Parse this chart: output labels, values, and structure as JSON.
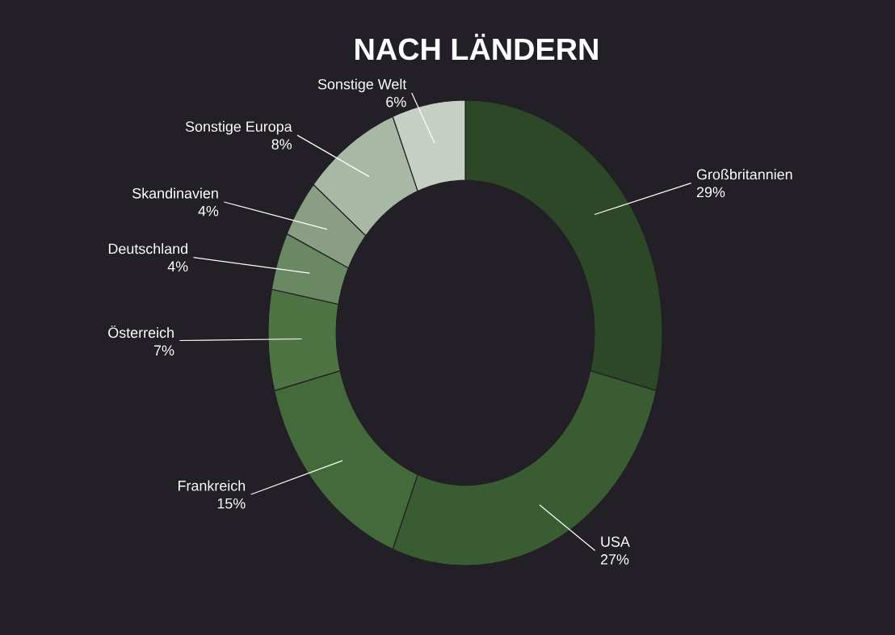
{
  "chart_data": {
    "type": "donut",
    "title": "NACH LÄNDERN",
    "categories": [
      "Großbritannien",
      "USA",
      "Frankreich",
      "Österreich",
      "Deutschland",
      "Skandinavien",
      "Sonstige Europa",
      "Sonstige Welt"
    ],
    "values": [
      29,
      27,
      15,
      7,
      4,
      4,
      8,
      6
    ],
    "value_labels": [
      "29%",
      "27%",
      "15%",
      "7%",
      "4%",
      "4%",
      "8%",
      "6%"
    ],
    "colors": [
      "#2d4827",
      "#3a5c32",
      "#44693b",
      "#4e7444",
      "#6a8861",
      "#8a9e84",
      "#a9b8a4",
      "#c6cfc3"
    ]
  }
}
